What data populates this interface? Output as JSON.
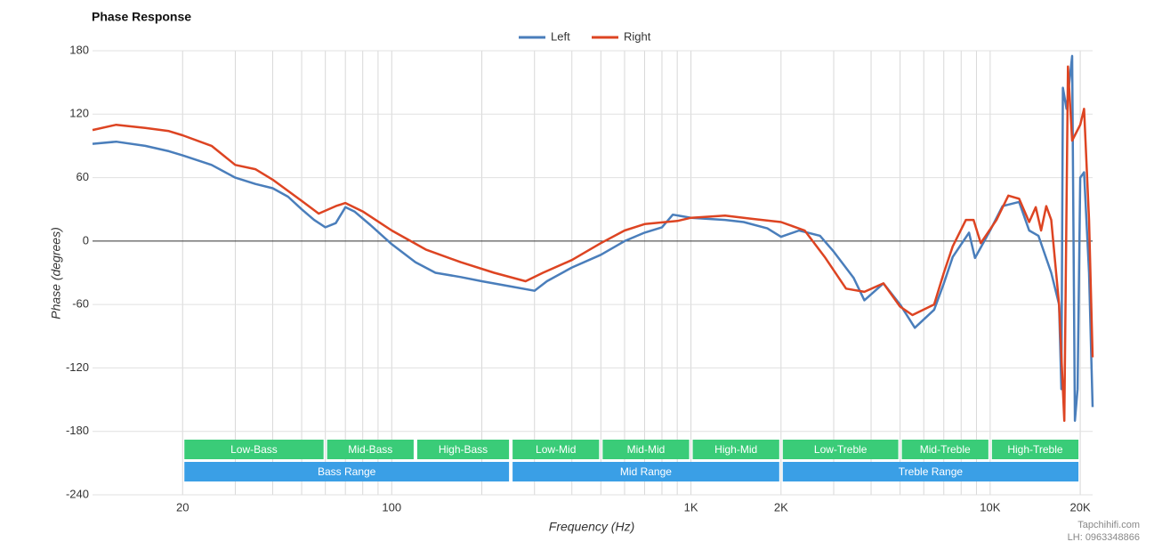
{
  "chart_data": {
    "type": "line",
    "title": "Phase Response",
    "x_label": "Frequency (Hz)",
    "y_label": "Phase (degrees)",
    "log_x": true,
    "xlim": [
      10,
      22000
    ],
    "ylim": [
      -240,
      180
    ],
    "xticks": [
      20,
      100,
      {
        "value": 1000,
        "label": "1K"
      },
      {
        "value": 2000,
        "label": "2K"
      },
      {
        "value": 10000,
        "label": "10K"
      },
      {
        "value": 20000,
        "label": "20K"
      }
    ],
    "xgrid": [
      20,
      30,
      40,
      50,
      60,
      70,
      80,
      90,
      100,
      200,
      300,
      400,
      500,
      600,
      700,
      800,
      900,
      1000,
      2000,
      3000,
      4000,
      5000,
      6000,
      7000,
      8000,
      9000,
      10000,
      20000
    ],
    "yticks": [
      -240,
      -180,
      -120,
      -60,
      0,
      60,
      120,
      180
    ],
    "grid": true,
    "legend": "top",
    "bands": [
      {
        "label": "Low-Bass",
        "from": 20,
        "to": 60,
        "row": 0
      },
      {
        "label": "Mid-Bass",
        "from": 60,
        "to": 120,
        "row": 0
      },
      {
        "label": "High-Bass",
        "from": 120,
        "to": 250,
        "row": 0
      },
      {
        "label": "Low-Mid",
        "from": 250,
        "to": 500,
        "row": 0
      },
      {
        "label": "Mid-Mid",
        "from": 500,
        "to": 1000,
        "row": 0
      },
      {
        "label": "High-Mid",
        "from": 1000,
        "to": 2000,
        "row": 0
      },
      {
        "label": "Low-Treble",
        "from": 2000,
        "to": 5000,
        "row": 0
      },
      {
        "label": "Mid-Treble",
        "from": 5000,
        "to": 10000,
        "row": 0
      },
      {
        "label": "High-Treble",
        "from": 10000,
        "to": 20000,
        "row": 0
      },
      {
        "label": "Bass Range",
        "from": 20,
        "to": 250,
        "row": 1
      },
      {
        "label": "Mid Range",
        "from": 250,
        "to": 2000,
        "row": 1
      },
      {
        "label": "Treble Range",
        "from": 2000,
        "to": 20000,
        "row": 1
      }
    ],
    "series": [
      {
        "name": "Left",
        "color": "#4a7ebb",
        "x": [
          10,
          12,
          15,
          18,
          20,
          25,
          30,
          35,
          40,
          45,
          50,
          55,
          60,
          65,
          70,
          75,
          85,
          100,
          120,
          140,
          170,
          200,
          250,
          300,
          330,
          400,
          500,
          600,
          700,
          800,
          870,
          1000,
          1300,
          1500,
          1800,
          2000,
          2300,
          2700,
          3000,
          3500,
          3800,
          4400,
          5000,
          5600,
          6500,
          7000,
          7500,
          8500,
          8900,
          10000,
          11000,
          12500,
          13500,
          14500,
          16000,
          17000,
          17300,
          17500,
          18000,
          18800,
          19200,
          19600,
          20000,
          20600,
          21400,
          22000
        ],
        "values": [
          92,
          94,
          90,
          85,
          81,
          72,
          60,
          54,
          50,
          42,
          30,
          20,
          13,
          17,
          32,
          28,
          15,
          -3,
          -20,
          -30,
          -34,
          -38,
          -43,
          -47,
          -38,
          -25,
          -13,
          0,
          8,
          13,
          25,
          22,
          20,
          18,
          12,
          4,
          10,
          5,
          -10,
          -35,
          -56,
          -40,
          -60,
          -82,
          -65,
          -40,
          -15,
          8,
          -16,
          10,
          33,
          37,
          10,
          5,
          -30,
          -60,
          -140,
          145,
          125,
          175,
          -170,
          -140,
          60,
          65,
          -30,
          -157
        ]
      },
      {
        "name": "Right",
        "color": "#dd4422",
        "x": [
          10,
          12,
          15,
          18,
          20,
          25,
          30,
          35,
          40,
          50,
          57,
          65,
          70,
          80,
          100,
          130,
          170,
          220,
          280,
          320,
          400,
          500,
          600,
          700,
          900,
          1000,
          1300,
          1600,
          2000,
          2400,
          2800,
          3300,
          3800,
          4400,
          5000,
          5500,
          6500,
          7000,
          7500,
          8300,
          8800,
          9300,
          10500,
          11500,
          12500,
          13500,
          14200,
          14800,
          15400,
          16000,
          17000,
          17700,
          18200,
          18800,
          20000,
          20600,
          21400,
          22000
        ],
        "values": [
          105,
          110,
          107,
          104,
          100,
          90,
          72,
          68,
          58,
          38,
          26,
          33,
          36,
          28,
          10,
          -8,
          -20,
          -30,
          -38,
          -30,
          -18,
          -2,
          10,
          16,
          19,
          22,
          24,
          21,
          18,
          10,
          -15,
          -45,
          -48,
          -40,
          -62,
          -70,
          -60,
          -30,
          -5,
          20,
          20,
          -2,
          20,
          43,
          40,
          18,
          32,
          10,
          33,
          20,
          -60,
          -170,
          165,
          95,
          110,
          125,
          20,
          -110
        ]
      }
    ],
    "footer": [
      "Tapchihifi.com",
      "LH: 0963348866"
    ]
  }
}
